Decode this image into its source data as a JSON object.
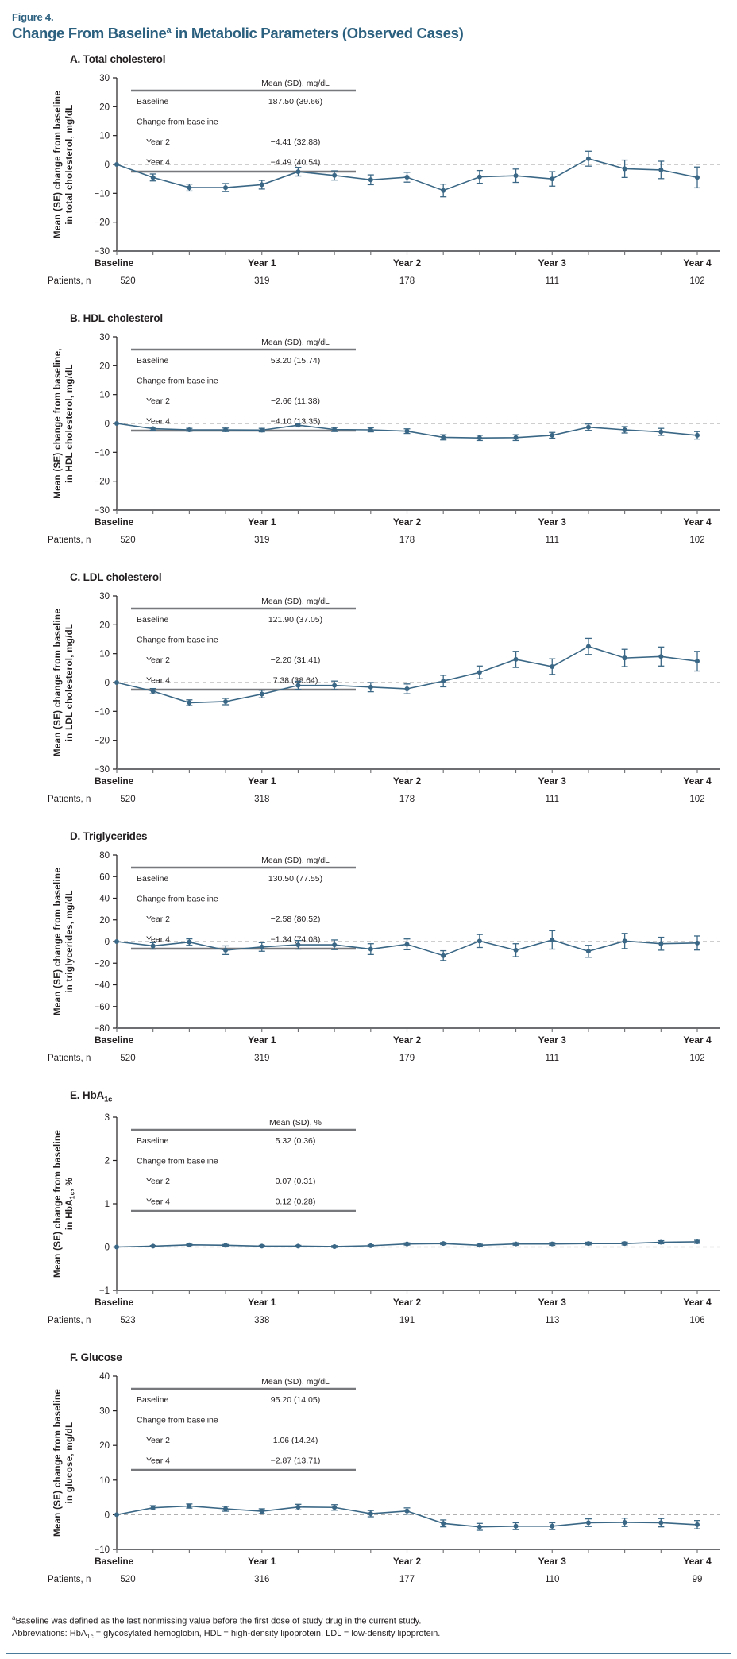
{
  "header": {
    "figure_label": "Figure 4.",
    "title": "Change From Baseline^{a} in Metabolic Parameters (Observed Cases)"
  },
  "labels": {
    "patients_row": "Patients, n"
  },
  "colors": {
    "title_teal": "#2c607f",
    "series_line": "#3a6785",
    "axis_gray": "#6d6e71",
    "text_black": "#231f20",
    "zero_dash": "#b0b0b0",
    "table_rule": "#77787b"
  },
  "footnotes": [
    "^{a}Baseline was defined as the last nonmissing value before the first dose of study drug in the current study.",
    "Abbreviations: HbA_{1c} = glycosylated hemoglobin, HDL = high-density lipoprotein, LDL = low-density lipoprotein."
  ],
  "chart_data": [
    {
      "type": "line",
      "panel_label": "A. Total cholesterol",
      "ylabel": [
        "Mean (SE) change from baseline",
        "in total cholesterol, mg/dL"
      ],
      "ylim": [
        -30,
        30
      ],
      "ytick_step": 10,
      "x_major_labels": [
        "Baseline",
        "Year 1",
        "Year 2",
        "Year 3",
        "Year 4"
      ],
      "grid": false,
      "legend": "none",
      "values": [
        0,
        -4.5,
        -8,
        -8,
        -7,
        -2.5,
        -3.8,
        -5.3,
        -4.41,
        -9,
        -4.3,
        -3.9,
        -5,
        2,
        -1.5,
        -1.9,
        -4.49
      ],
      "se": [
        0,
        1.2,
        1.2,
        1.4,
        1.5,
        1.5,
        1.6,
        1.7,
        1.7,
        2.2,
        2.2,
        2.3,
        2.5,
        2.6,
        3,
        3,
        3.6
      ],
      "patients_n": [
        "520",
        "319",
        "178",
        "111",
        "102"
      ],
      "inset_table": {
        "header": "Mean (SD), mg/dL",
        "rows": [
          {
            "label": "Baseline",
            "value": "187.50 (39.66)",
            "indent": false
          },
          {
            "label": "Change from baseline",
            "value": "",
            "indent": false
          },
          {
            "label": "Year 2",
            "value": "−4.41 (32.88)",
            "indent": true
          },
          {
            "label": "Year 4",
            "value": "−4.49 (40.54)",
            "indent": true
          }
        ]
      }
    },
    {
      "type": "line",
      "panel_label": "B. HDL cholesterol",
      "ylabel": [
        "Mean (SE) change from baseline,",
        "in HDL cholesterol, mg/dL"
      ],
      "ylim": [
        -30,
        30
      ],
      "ytick_step": 10,
      "x_major_labels": [
        "Baseline",
        "Year 1",
        "Year 2",
        "Year 3",
        "Year 4"
      ],
      "grid": false,
      "legend": "none",
      "values": [
        0,
        -1.8,
        -2.2,
        -2.2,
        -2.3,
        -0.6,
        -2.1,
        -2.2,
        -2.66,
        -4.8,
        -5,
        -4.9,
        -4.1,
        -1.3,
        -2.2,
        -2.9,
        -4.1
      ],
      "se": [
        0,
        0.5,
        0.5,
        0.6,
        0.6,
        0.6,
        0.7,
        0.7,
        0.8,
        0.9,
        0.9,
        1,
        1,
        1.1,
        1.1,
        1.2,
        1.3
      ],
      "patients_n": [
        "520",
        "319",
        "178",
        "111",
        "102"
      ],
      "inset_table": {
        "header": "Mean (SD), mg/dL",
        "rows": [
          {
            "label": "Baseline",
            "value": "53.20 (15.74)",
            "indent": false
          },
          {
            "label": "Change from baseline",
            "value": "",
            "indent": false
          },
          {
            "label": "Year 2",
            "value": "−2.66 (11.38)",
            "indent": true
          },
          {
            "label": "Year 4",
            "value": "−4.10 (13.35)",
            "indent": true
          }
        ]
      }
    },
    {
      "type": "line",
      "panel_label": "C. LDL cholesterol",
      "ylabel": [
        "Mean (SE) change from baseline",
        "in LDL cholesterol, mg/dL"
      ],
      "ylim": [
        -30,
        30
      ],
      "ytick_step": 10,
      "x_major_labels": [
        "Baseline",
        "Year 1",
        "Year 2",
        "Year 3",
        "Year 4"
      ],
      "grid": false,
      "legend": "none",
      "values": [
        0,
        -3,
        -7,
        -6.6,
        -4,
        -1,
        -1,
        -1.6,
        -2.2,
        0.5,
        3.5,
        8,
        5.5,
        12.5,
        8.5,
        9,
        7.38
      ],
      "se": [
        0,
        0.9,
        1,
        1.1,
        1.3,
        1.4,
        1.5,
        1.6,
        1.7,
        2,
        2.2,
        2.8,
        2.7,
        2.8,
        3,
        3.3,
        3.4
      ],
      "patients_n": [
        "520",
        "318",
        "178",
        "111",
        "102"
      ],
      "inset_table": {
        "header": "Mean (SD), mg/dL",
        "rows": [
          {
            "label": "Baseline",
            "value": "121.90 (37.05)",
            "indent": false
          },
          {
            "label": "Change from baseline",
            "value": "",
            "indent": false
          },
          {
            "label": "Year 2",
            "value": "−2.20 (31.41)",
            "indent": true
          },
          {
            "label": "Year 4",
            "value": "7.38 (38.64)",
            "indent": true
          }
        ]
      }
    },
    {
      "type": "line",
      "panel_label": "D. Triglycerides",
      "ylabel": [
        "Mean (SE) change from baseline",
        "in triglycerides, mg/dL"
      ],
      "ylim": [
        -80,
        80
      ],
      "ytick_step": 20,
      "x_major_labels": [
        "Baseline",
        "Year 1",
        "Year 2",
        "Year 3",
        "Year 4"
      ],
      "grid": false,
      "legend": "none",
      "values": [
        0,
        -4,
        -0.5,
        -8,
        -5,
        -3,
        -3,
        -7,
        -2.58,
        -13,
        0.5,
        -8,
        1.5,
        -9,
        0.5,
        -2,
        -1.34
      ],
      "se": [
        0,
        3,
        3,
        4,
        4,
        4,
        4.5,
        5,
        5,
        4.5,
        6,
        6,
        8.5,
        5.5,
        7,
        6,
        6.5
      ],
      "patients_n": [
        "520",
        "319",
        "179",
        "111",
        "102"
      ],
      "inset_table": {
        "header": "Mean (SD), mg/dL",
        "rows": [
          {
            "label": "Baseline",
            "value": "130.50 (77.55)",
            "indent": false
          },
          {
            "label": "Change from baseline",
            "value": "",
            "indent": false
          },
          {
            "label": "Year 2",
            "value": "−2.58 (80.52)",
            "indent": true
          },
          {
            "label": "Year 4",
            "value": "−1.34 (74.08)",
            "indent": true
          }
        ]
      }
    },
    {
      "type": "line",
      "panel_label": "E. HbA_{1c}",
      "ylabel": [
        "Mean (SE) change from baseline",
        "in HbA_{1c}, %"
      ],
      "ylim": [
        -1,
        3
      ],
      "ytick_step": 1,
      "x_major_labels": [
        "Baseline",
        "Year 1",
        "Year 2",
        "Year 3",
        "Year 4"
      ],
      "grid": false,
      "legend": "none",
      "values": [
        0,
        0.02,
        0.05,
        0.04,
        0.02,
        0.02,
        0.01,
        0.03,
        0.07,
        0.08,
        0.04,
        0.07,
        0.07,
        0.08,
        0.08,
        0.11,
        0.12
      ],
      "se": [
        0,
        0.015,
        0.015,
        0.018,
        0.018,
        0.018,
        0.02,
        0.022,
        0.025,
        0.025,
        0.025,
        0.028,
        0.03,
        0.03,
        0.032,
        0.035,
        0.035
      ],
      "patients_n": [
        "523",
        "338",
        "191",
        "113",
        "106"
      ],
      "inset_table": {
        "header": "Mean (SD), %",
        "rows": [
          {
            "label": "Baseline",
            "value": "5.32 (0.36)",
            "indent": false
          },
          {
            "label": "Change from baseline",
            "value": "",
            "indent": false
          },
          {
            "label": "Year 2",
            "value": "0.07 (0.31)",
            "indent": true
          },
          {
            "label": "Year 4",
            "value": "0.12 (0.28)",
            "indent": true
          }
        ]
      }
    },
    {
      "type": "line",
      "panel_label": "F. Glucose",
      "ylabel": [
        "Mean (SE) change from baseline",
        "in glucose, mg/dL"
      ],
      "ylim": [
        -10,
        40
      ],
      "ytick_step": 10,
      "x_major_labels": [
        "Baseline",
        "Year 1",
        "Year 2",
        "Year 3",
        "Year 4"
      ],
      "grid": false,
      "legend": "none",
      "values": [
        0,
        2,
        2.5,
        1.7,
        1,
        2.2,
        2.1,
        0.3,
        1.06,
        -2.5,
        -3.5,
        -3.3,
        -3.3,
        -2.3,
        -2.2,
        -2.3,
        -2.87
      ],
      "se": [
        0,
        0.6,
        0.6,
        0.7,
        0.7,
        0.8,
        0.8,
        0.9,
        0.9,
        1,
        1,
        1,
        1,
        1.1,
        1.2,
        1.2,
        1.2
      ],
      "patients_n": [
        "520",
        "316",
        "177",
        "110",
        "99"
      ],
      "inset_table": {
        "header": "Mean (SD), mg/dL",
        "rows": [
          {
            "label": "Baseline",
            "value": "95.20 (14.05)",
            "indent": false
          },
          {
            "label": "Change from baseline",
            "value": "",
            "indent": false
          },
          {
            "label": "Year 2",
            "value": "1.06 (14.24)",
            "indent": true
          },
          {
            "label": "Year 4",
            "value": "−2.87 (13.71)",
            "indent": true
          }
        ]
      }
    }
  ]
}
